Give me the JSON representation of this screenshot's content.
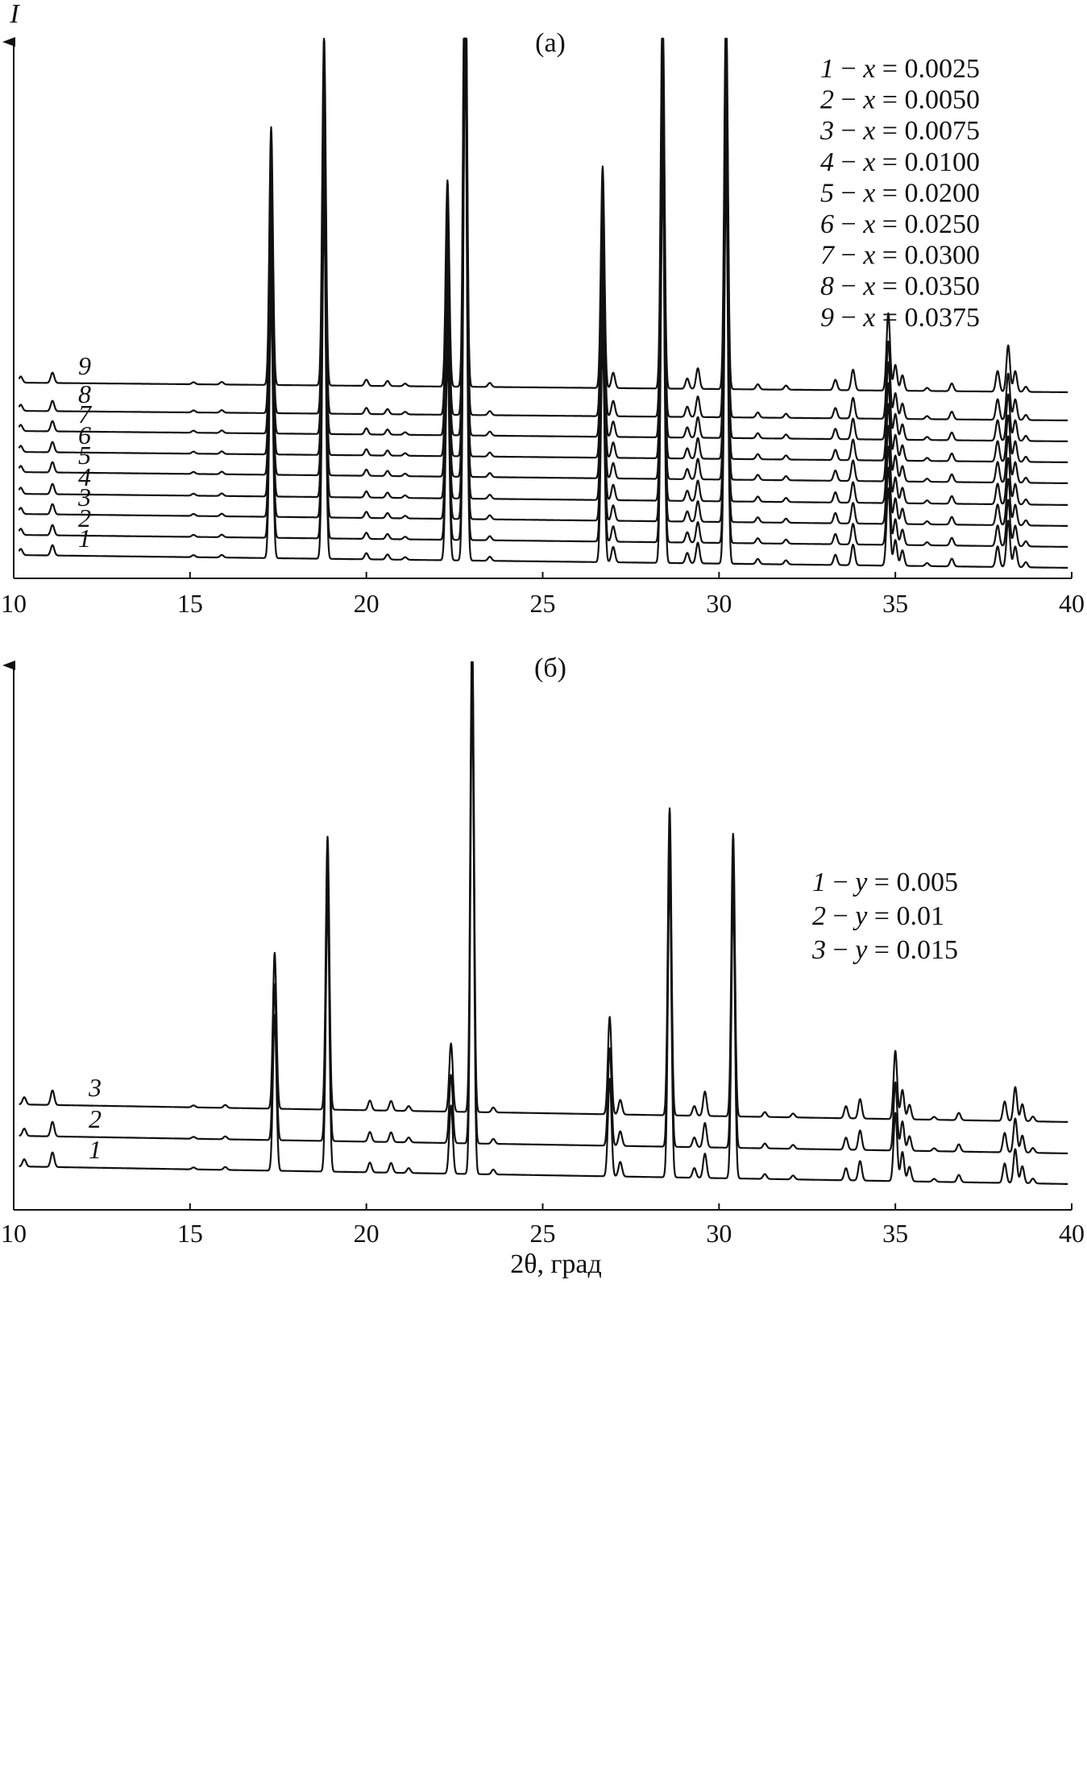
{
  "chart_data": [
    {
      "type": "line",
      "panel_label": "(a)",
      "ylabel": "I",
      "xlabel": "",
      "xlim": [
        10,
        40
      ],
      "x_ticks": [
        "10",
        "15",
        "20",
        "25",
        "30",
        "35",
        "40"
      ],
      "legend_position": "top-right",
      "legend": [
        {
          "num": "1",
          "var": "x",
          "value": "0.0025"
        },
        {
          "num": "2",
          "var": "x",
          "value": "0.0050"
        },
        {
          "num": "3",
          "var": "x",
          "value": "0.0075"
        },
        {
          "num": "4",
          "var": "x",
          "value": "0.0100"
        },
        {
          "num": "5",
          "var": "x",
          "value": "0.0200"
        },
        {
          "num": "6",
          "var": "x",
          "value": "0.0250"
        },
        {
          "num": "7",
          "var": "x",
          "value": "0.0300"
        },
        {
          "num": "8",
          "var": "x",
          "value": "0.0350"
        },
        {
          "num": "9",
          "var": "x",
          "value": "0.0375"
        }
      ],
      "series_labels": [
        "1",
        "2",
        "3",
        "4",
        "5",
        "6",
        "7",
        "8",
        "9"
      ],
      "peaks": [
        {
          "x": 10.2,
          "h": 0.012
        },
        {
          "x": 11.1,
          "h": 0.02
        },
        {
          "x": 15.1,
          "h": 0.004
        },
        {
          "x": 15.9,
          "h": 0.005
        },
        {
          "x": 17.3,
          "h": 0.5
        },
        {
          "x": 18.8,
          "h": 0.68
        },
        {
          "x": 20.0,
          "h": 0.012
        },
        {
          "x": 20.6,
          "h": 0.01
        },
        {
          "x": 21.1,
          "h": 0.005
        },
        {
          "x": 22.3,
          "h": 0.4
        },
        {
          "x": 22.8,
          "h": 1.0
        },
        {
          "x": 23.5,
          "h": 0.008
        },
        {
          "x": 26.7,
          "h": 0.43
        },
        {
          "x": 27.0,
          "h": 0.03
        },
        {
          "x": 28.4,
          "h": 0.77
        },
        {
          "x": 29.1,
          "h": 0.02
        },
        {
          "x": 29.4,
          "h": 0.04
        },
        {
          "x": 30.2,
          "h": 0.76
        },
        {
          "x": 31.1,
          "h": 0.01
        },
        {
          "x": 31.9,
          "h": 0.008
        },
        {
          "x": 33.3,
          "h": 0.02
        },
        {
          "x": 33.8,
          "h": 0.04
        },
        {
          "x": 34.8,
          "h": 0.15
        },
        {
          "x": 35.0,
          "h": 0.05
        },
        {
          "x": 35.2,
          "h": 0.03
        },
        {
          "x": 35.9,
          "h": 0.006
        },
        {
          "x": 36.6,
          "h": 0.015
        },
        {
          "x": 37.9,
          "h": 0.04
        },
        {
          "x": 38.2,
          "h": 0.09
        },
        {
          "x": 38.4,
          "h": 0.04
        },
        {
          "x": 38.7,
          "h": 0.01
        }
      ]
    },
    {
      "type": "line",
      "panel_label": "(б)",
      "ylabel": "",
      "xlabel": "2θ, град",
      "xlim": [
        10,
        40
      ],
      "x_ticks": [
        "10",
        "15",
        "20",
        "25",
        "30",
        "35",
        "40"
      ],
      "legend_position": "right",
      "legend": [
        {
          "num": "1",
          "var": "y",
          "value": "0.005"
        },
        {
          "num": "2",
          "var": "y",
          "value": "0.01"
        },
        {
          "num": "3",
          "var": "y",
          "value": "0.015"
        }
      ],
      "series_labels": [
        "1",
        "2",
        "3"
      ],
      "peaks": [
        {
          "x": 10.3,
          "h": 0.015
        },
        {
          "x": 11.1,
          "h": 0.03
        },
        {
          "x": 15.1,
          "h": 0.004
        },
        {
          "x": 16.0,
          "h": 0.006
        },
        {
          "x": 17.4,
          "h": 0.32
        },
        {
          "x": 18.9,
          "h": 0.56
        },
        {
          "x": 20.1,
          "h": 0.02
        },
        {
          "x": 20.7,
          "h": 0.02
        },
        {
          "x": 21.2,
          "h": 0.01
        },
        {
          "x": 22.4,
          "h": 0.14
        },
        {
          "x": 23.0,
          "h": 1.0
        },
        {
          "x": 23.6,
          "h": 0.01
        },
        {
          "x": 26.9,
          "h": 0.2
        },
        {
          "x": 27.2,
          "h": 0.03
        },
        {
          "x": 28.6,
          "h": 0.63
        },
        {
          "x": 29.3,
          "h": 0.02
        },
        {
          "x": 29.6,
          "h": 0.05
        },
        {
          "x": 30.4,
          "h": 0.58
        },
        {
          "x": 31.3,
          "h": 0.01
        },
        {
          "x": 32.1,
          "h": 0.008
        },
        {
          "x": 33.6,
          "h": 0.025
        },
        {
          "x": 34.0,
          "h": 0.04
        },
        {
          "x": 35.0,
          "h": 0.14
        },
        {
          "x": 35.2,
          "h": 0.06
        },
        {
          "x": 35.4,
          "h": 0.03
        },
        {
          "x": 36.1,
          "h": 0.006
        },
        {
          "x": 36.8,
          "h": 0.015
        },
        {
          "x": 38.1,
          "h": 0.04
        },
        {
          "x": 38.4,
          "h": 0.07
        },
        {
          "x": 38.6,
          "h": 0.035
        },
        {
          "x": 38.9,
          "h": 0.01
        }
      ]
    }
  ]
}
